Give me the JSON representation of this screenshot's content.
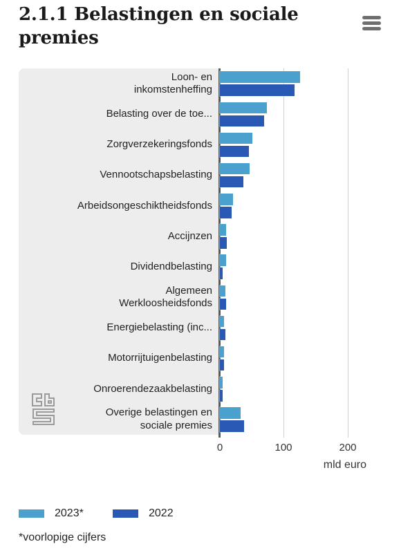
{
  "header": {
    "title": "2.1.1 Belastingen en sociale premies"
  },
  "chart_data": {
    "type": "bar",
    "orientation": "horizontal",
    "title": "2.1.1 Belastingen en sociale premies",
    "xlabel": "mld euro",
    "x_ticks": [
      "0",
      "100",
      "200"
    ],
    "xlim": [
      0,
      260
    ],
    "grid": true,
    "legend_position": "bottom",
    "categories": [
      "Loon- en inkomstenheffing",
      "Belasting over de toe...",
      "Zorgverzekeringsfonds",
      "Vennootschapsbelasting",
      "Arbeidsongeschiktheidsfonds",
      "Accijnzen",
      "Dividendbelasting",
      "Algemeen Werkloosheidsfonds",
      "Energiebelasting (inc...",
      "Motorrijtuigenbelasting",
      "Onroerendezaakbelasting",
      "Overige belastingen en sociale premies"
    ],
    "label_lines": [
      [
        "Loon- en",
        "inkomstenheffing"
      ],
      [
        "Belasting over de toe..."
      ],
      [
        "Zorgverzekeringsfonds"
      ],
      [
        "Vennootschapsbelasting"
      ],
      [
        "Arbeidsongeschiktheidsfonds"
      ],
      [
        "Accijnzen"
      ],
      [
        "Dividendbelasting"
      ],
      [
        "Algemeen",
        "Werkloosheidsfonds"
      ],
      [
        "Energiebelasting (inc..."
      ],
      [
        "Motorrijtuigenbelasting"
      ],
      [
        "Onroerendezaakbelasting"
      ],
      [
        "Overige belastingen en",
        "sociale premies"
      ]
    ],
    "series": [
      {
        "name": "2023*",
        "color": "#4BA1CD",
        "values": [
          126,
          74,
          51,
          47,
          21,
          9.5,
          10,
          9,
          7,
          7,
          4.5,
          33
        ]
      },
      {
        "name": "2022",
        "color": "#2A58B5",
        "values": [
          117,
          69,
          46,
          37,
          18,
          11,
          4,
          9.5,
          9,
          6.5,
          4,
          38
        ]
      }
    ]
  },
  "footnote": {
    "text": "*voorlopige cijfers"
  },
  "colors": {
    "panel_bg": "#EDEDED",
    "axis": "#58595B",
    "gridline": "#CFCFCF",
    "title_text": "#1A1A1A",
    "label_text": "#222222",
    "menu_icon": "#6E6E6E",
    "logo_gray": "#9B9B9B"
  }
}
